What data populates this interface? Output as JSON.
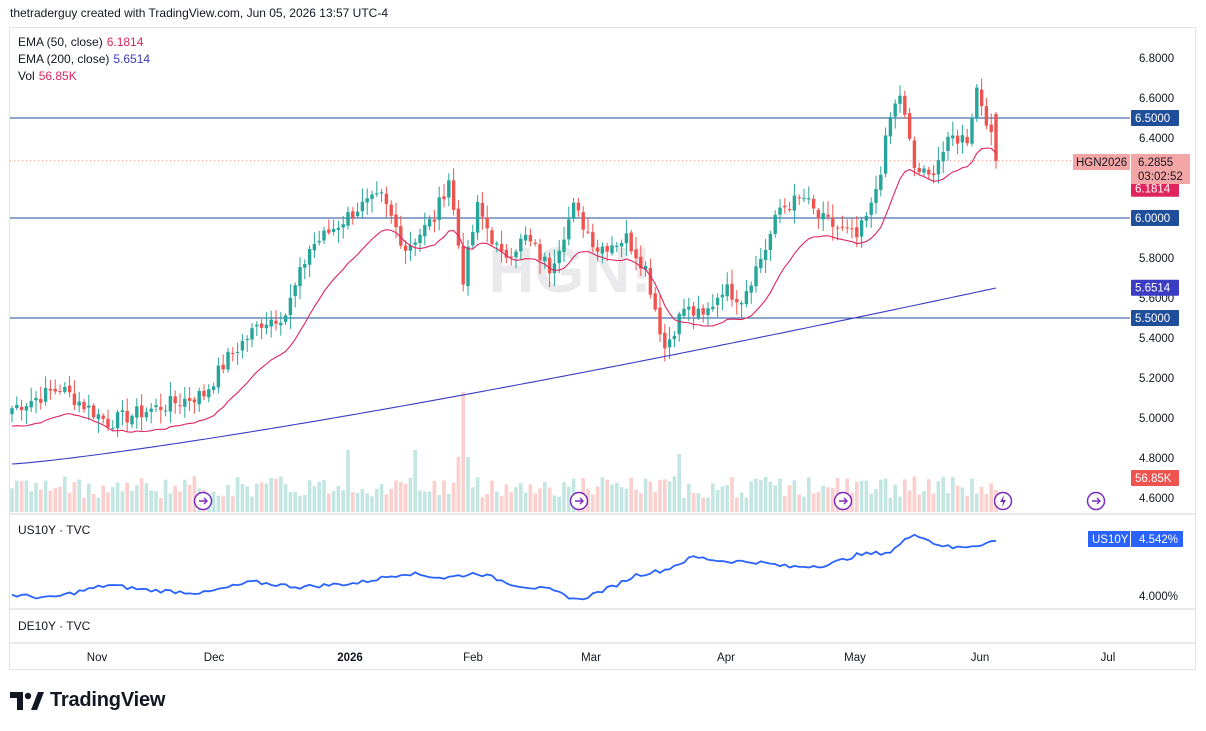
{
  "header": {
    "text": "thetraderguy created with TradingView.com, Jun 05, 2026 13:57 UTC-4"
  },
  "legend": {
    "ema50": {
      "label": "EMA (50, close)",
      "value": "6.1814",
      "color": "#e0245e"
    },
    "ema200": {
      "label": "EMA (200, close)",
      "value": "5.6514",
      "color": "#3b3bc4"
    },
    "vol": {
      "label": "Vol",
      "value": "56.85K",
      "color": "#e0245e"
    }
  },
  "watermark": "HGN!",
  "logo": {
    "text": "TradingView"
  },
  "colors": {
    "up": "#26a69a",
    "down": "#ef5350",
    "hline": "#1f4e9a",
    "us10y": "#2962ff"
  },
  "icons": [
    "calendar-event-icon",
    "calendar-event-icon",
    "calendar-event-icon",
    "lightning-event-icon",
    "calendar-event-icon"
  ],
  "chart_data": [
    {
      "type": "candlestick",
      "symbol": "HGN2026",
      "ylim": [
        4.55,
        6.9
      ],
      "ticks_y": [
        "6.8000",
        "6.6000",
        "6.4000",
        "6.2000",
        "6.0000",
        "5.8000",
        "5.6000",
        "5.4000",
        "5.2000",
        "5.0000",
        "4.8000",
        "4.6000"
      ],
      "x_labels": [
        "Nov",
        "Dec",
        "2026",
        "Feb",
        "Mar",
        "Apr",
        "May",
        "Jun",
        "Jul"
      ],
      "anchors": [
        {
          "bar": 0,
          "close": 5.05
        },
        {
          "bar": 10,
          "close": 5.15
        },
        {
          "bar": 20,
          "close": 4.98
        },
        {
          "bar": 30,
          "close": 5.05
        },
        {
          "bar": 40,
          "close": 5.12
        },
        {
          "bar": 45,
          "close": 5.3
        },
        {
          "bar": 52,
          "close": 5.48
        },
        {
          "bar": 57,
          "close": 5.52
        },
        {
          "bar": 62,
          "close": 5.85
        },
        {
          "bar": 67,
          "close": 5.95
        },
        {
          "bar": 72,
          "close": 6.05
        },
        {
          "bar": 77,
          "close": 6.1
        },
        {
          "bar": 82,
          "close": 5.85
        },
        {
          "bar": 88,
          "close": 6.0
        },
        {
          "bar": 91,
          "close": 6.2
        },
        {
          "bar": 94,
          "close": 5.7
        },
        {
          "bar": 97,
          "close": 6.05
        },
        {
          "bar": 102,
          "close": 5.8
        },
        {
          "bar": 107,
          "close": 5.9
        },
        {
          "bar": 112,
          "close": 5.75
        },
        {
          "bar": 117,
          "close": 6.05
        },
        {
          "bar": 122,
          "close": 5.85
        },
        {
          "bar": 128,
          "close": 5.9
        },
        {
          "bar": 132,
          "close": 5.75
        },
        {
          "bar": 136,
          "close": 5.35
        },
        {
          "bar": 140,
          "close": 5.55
        },
        {
          "bar": 144,
          "close": 5.5
        },
        {
          "bar": 148,
          "close": 5.65
        },
        {
          "bar": 152,
          "close": 5.6
        },
        {
          "bar": 157,
          "close": 5.85
        },
        {
          "bar": 160,
          "close": 6.05
        },
        {
          "bar": 165,
          "close": 6.1
        },
        {
          "bar": 168,
          "close": 6.0
        },
        {
          "bar": 172,
          "close": 5.95
        },
        {
          "bar": 176,
          "close": 5.9
        },
        {
          "bar": 179,
          "close": 6.05
        },
        {
          "bar": 181,
          "close": 6.25
        },
        {
          "bar": 183,
          "close": 6.5
        },
        {
          "bar": 185,
          "close": 6.62
        },
        {
          "bar": 188,
          "close": 6.25
        },
        {
          "bar": 191,
          "close": 6.2
        },
        {
          "bar": 193,
          "close": 6.3
        },
        {
          "bar": 196,
          "close": 6.4
        },
        {
          "bar": 199,
          "close": 6.4
        },
        {
          "bar": 201,
          "close": 6.65
        },
        {
          "bar": 203,
          "close": 6.5
        },
        {
          "bar": 205,
          "close": 6.2855
        }
      ],
      "last_price": "6.2855",
      "countdown": "03:02:52",
      "ema50_last": "6.1814",
      "ema200_last": "5.6514",
      "horizontal_levels": [
        "6.5000",
        "6.0000",
        "5.5000"
      ],
      "volume_last": "56.85K"
    },
    {
      "type": "line",
      "name": "US10Y · TVC",
      "last_value": "4.542%",
      "tick": "4.000%",
      "anchors": [
        {
          "bar": 0,
          "value": 4.0
        },
        {
          "bar": 8,
          "value": 3.97
        },
        {
          "bar": 20,
          "value": 4.1
        },
        {
          "bar": 28,
          "value": 4.05
        },
        {
          "bar": 40,
          "value": 4.02
        },
        {
          "bar": 50,
          "value": 4.13
        },
        {
          "bar": 60,
          "value": 4.08
        },
        {
          "bar": 72,
          "value": 4.12
        },
        {
          "bar": 82,
          "value": 4.22
        },
        {
          "bar": 90,
          "value": 4.17
        },
        {
          "bar": 97,
          "value": 4.22
        },
        {
          "bar": 105,
          "value": 4.1
        },
        {
          "bar": 112,
          "value": 4.05
        },
        {
          "bar": 118,
          "value": 3.95
        },
        {
          "bar": 125,
          "value": 4.08
        },
        {
          "bar": 130,
          "value": 4.2
        },
        {
          "bar": 136,
          "value": 4.25
        },
        {
          "bar": 142,
          "value": 4.38
        },
        {
          "bar": 148,
          "value": 4.34
        },
        {
          "bar": 155,
          "value": 4.33
        },
        {
          "bar": 162,
          "value": 4.28
        },
        {
          "bar": 170,
          "value": 4.3
        },
        {
          "bar": 176,
          "value": 4.4
        },
        {
          "bar": 183,
          "value": 4.43
        },
        {
          "bar": 188,
          "value": 4.62
        },
        {
          "bar": 192,
          "value": 4.52
        },
        {
          "bar": 196,
          "value": 4.47
        },
        {
          "bar": 201,
          "value": 4.5
        },
        {
          "bar": 205,
          "value": 4.542
        }
      ]
    },
    {
      "type": "line",
      "name": "DE10Y · TVC"
    }
  ]
}
